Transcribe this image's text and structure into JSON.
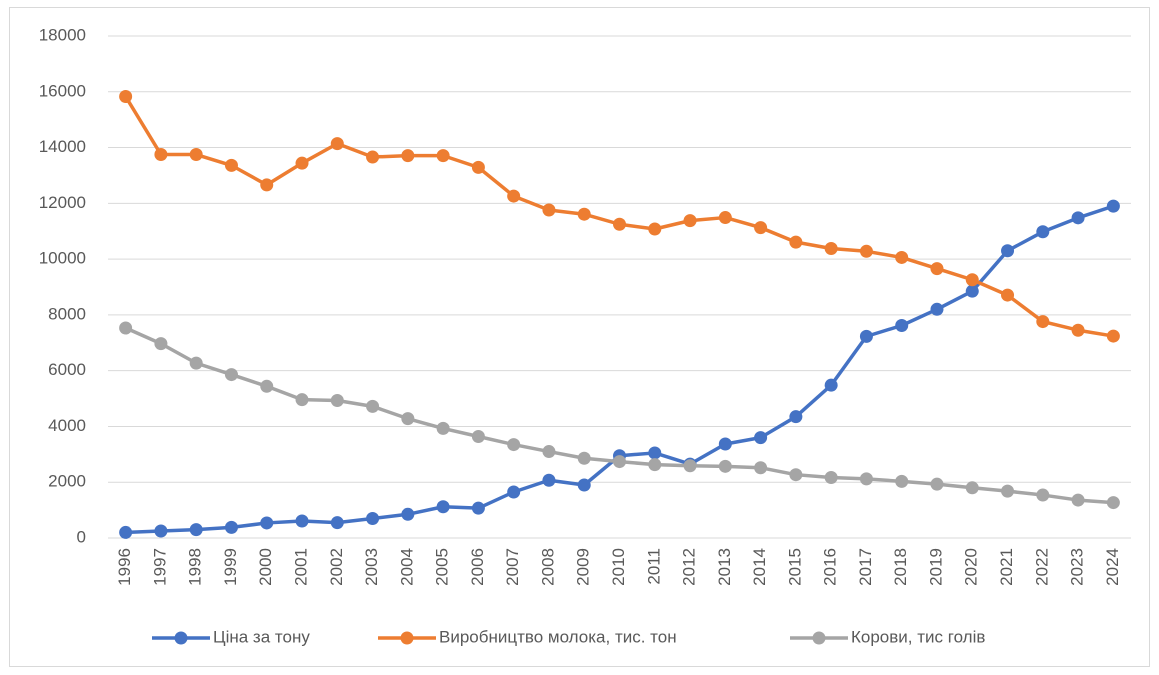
{
  "chart_data": {
    "type": "line",
    "categories": [
      "1996",
      "1997",
      "1998",
      "1999",
      "2000",
      "2001",
      "2002",
      "2003",
      "2004",
      "2005",
      "2006",
      "2007",
      "2008",
      "2009",
      "2010",
      "2011",
      "2012",
      "2013",
      "2014",
      "2015",
      "2016",
      "2017",
      "2018",
      "2019",
      "2020",
      "2021",
      "2022",
      "2023",
      "2024"
    ],
    "series": [
      {
        "name": "Ціна за тону",
        "color": "#4472c4",
        "values": [
          200,
          250,
          300,
          380,
          540,
          610,
          550,
          700,
          850,
          1120,
          1070,
          1650,
          2070,
          1900,
          2950,
          3050,
          2650,
          3370,
          3600,
          4350,
          5480,
          7230,
          7620,
          8200,
          8850,
          10300,
          10980,
          11480,
          11900
        ]
      },
      {
        "name": "Виробництво молока, тис. тон",
        "color": "#ed7d31",
        "values": [
          15830,
          13750,
          13750,
          13360,
          12660,
          13440,
          14140,
          13660,
          13710,
          13710,
          13290,
          12260,
          11760,
          11610,
          11250,
          11080,
          11380,
          11490,
          11130,
          10610,
          10380,
          10280,
          10060,
          9660,
          9260,
          8710,
          7760,
          7450,
          7240
        ]
      },
      {
        "name": "Корови, тис голів",
        "color": "#a5a5a5",
        "values": [
          7530,
          6970,
          6270,
          5860,
          5440,
          4960,
          4930,
          4720,
          4280,
          3930,
          3640,
          3350,
          3100,
          2860,
          2740,
          2630,
          2590,
          2570,
          2520,
          2270,
          2170,
          2120,
          2030,
          1930,
          1800,
          1680,
          1540,
          1360,
          1270
        ]
      }
    ],
    "ylim": [
      0,
      18000
    ],
    "yticks": [
      0,
      2000,
      4000,
      6000,
      8000,
      10000,
      12000,
      14000,
      16000,
      18000
    ],
    "grid": true,
    "legend": "bottom"
  }
}
